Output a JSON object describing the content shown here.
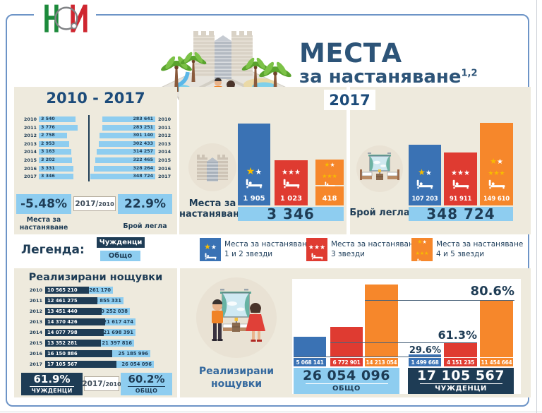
{
  "header": {
    "logo": "НСИ",
    "title_line1": "МЕСТА",
    "title_line2": "за настаняване",
    "title_sup": "1,2"
  },
  "colors": {
    "navy": "#1e3c55",
    "header_blue": "#1c4b7a",
    "light_blue": "#8ecdf0",
    "blue": "#3a72b4",
    "red": "#df3b31",
    "orange": "#f6872b",
    "beige": "#eeeadd",
    "gold": "#f7bc00"
  },
  "icons": {
    "nsi-logo": "NSI emblem",
    "hotel-illustration": "hotel with palm trees and tourist family",
    "building-icon": "hotel building",
    "bedroom-icon": "room with two beds",
    "guests-icon": "man and woman in hotel room",
    "bed-icon": "bed pictogram",
    "star-icon": "★"
  },
  "period_panel": {
    "header": "2010 - 2017",
    "rows": [
      {
        "year": "2010",
        "places": "3 540",
        "places_v": 3540,
        "beds": "283 641",
        "beds_v": 283641
      },
      {
        "year": "2011",
        "places": "3 776",
        "places_v": 3776,
        "beds": "283 251",
        "beds_v": 283251
      },
      {
        "year": "2012",
        "places": "2 758",
        "places_v": 2758,
        "beds": "301 140",
        "beds_v": 301140
      },
      {
        "year": "2013",
        "places": "2 953",
        "places_v": 2953,
        "beds": "302 433",
        "beds_v": 302433
      },
      {
        "year": "2014",
        "places": "3 163",
        "places_v": 3163,
        "beds": "314 257",
        "beds_v": 314257
      },
      {
        "year": "2015",
        "places": "3 202",
        "places_v": 3202,
        "beds": "322 465",
        "beds_v": 322465
      },
      {
        "year": "2016",
        "places": "3 331",
        "places_v": 3331,
        "beds": "328 264",
        "beds_v": 328264
      },
      {
        "year": "2017",
        "places": "3 346",
        "places_v": 3346,
        "beds": "348 724",
        "beds_v": 348724
      }
    ],
    "summary": {
      "places_change": "-5.48%",
      "ratio_num": "2017/",
      "ratio_den": "2010",
      "beds_change": "22.9%",
      "places_label_l1": "Места за",
      "places_label_l2": "настаняване",
      "beds_label": "Брой легла"
    }
  },
  "year2017": {
    "header": "2017",
    "places": {
      "label_l1": "Места за",
      "label_l2": "настаняване",
      "values": [
        "1 905",
        "1 023",
        "418"
      ],
      "total": "3 346"
    },
    "beds": {
      "label": "Брой легла",
      "values": [
        "107 203",
        "91 911",
        "149 610"
      ],
      "total": "348 724"
    }
  },
  "legend": {
    "label": "Легенда:",
    "badge_foreign": "Чужденци",
    "badge_total": "Общо",
    "items": [
      {
        "line1": "Места за настаняване",
        "line2": "1 и 2 звезди"
      },
      {
        "line1": "Места за настаняване",
        "line2": "3 звезди"
      },
      {
        "line1": "Места за настаняване",
        "line2": "4 и 5 звезди"
      }
    ]
  },
  "nights_panel": {
    "title": "Реализирани нощувки",
    "rows": [
      {
        "year": "2010",
        "foreign": "10 565 210",
        "foreign_v": 10565210,
        "total": "16 261 170",
        "total_v": 16261170
      },
      {
        "year": "2011",
        "foreign": "12 461 275",
        "foreign_v": 12461275,
        "total": "18 855 331",
        "total_v": 18855331
      },
      {
        "year": "2012",
        "foreign": "13 451 440",
        "foreign_v": 13451440,
        "total": "20 252 038",
        "total_v": 20252038
      },
      {
        "year": "2013",
        "foreign": "14 370 426",
        "foreign_v": 14370426,
        "total": "21 617 474",
        "total_v": 21617474
      },
      {
        "year": "2014",
        "foreign": "14 077 798",
        "foreign_v": 14077798,
        "total": "21 698 391",
        "total_v": 21698391
      },
      {
        "year": "2015",
        "foreign": "13 352 281",
        "foreign_v": 13352281,
        "total": "21 397 816",
        "total_v": 21397816
      },
      {
        "year": "2016",
        "foreign": "16 150 886",
        "foreign_v": 16150886,
        "total": "25 185 996",
        "total_v": 25185996
      },
      {
        "year": "2017",
        "foreign": "17 105 567",
        "foreign_v": 17105567,
        "total": "26 054 096",
        "total_v": 26054096
      }
    ],
    "summary": {
      "foreign_change": "61.9%",
      "foreign_label": "ЧУЖДЕНЦИ",
      "ratio_num": "2017/",
      "ratio_den": "2010",
      "total_change": "60.2%",
      "total_label": "ОБЩО"
    },
    "icon_label_l1": "Реализирани",
    "icon_label_l2": "нощувки"
  },
  "nights2017": {
    "total_group": {
      "values": [
        "5 068 141",
        "6 772 901",
        "14 213 054"
      ],
      "total": "26 054 096",
      "label": "ОБЩО"
    },
    "foreign_group": {
      "values": [
        "1 499 668",
        "4 151 235",
        "11 454 664"
      ],
      "total": "17 105 567",
      "label": "ЧУЖДЕНЦИ"
    },
    "percents": [
      "29.6%",
      "61.3%",
      "80.6%"
    ]
  },
  "chart_data": [
    {
      "type": "bar",
      "title": "Места за настаняване 2010-2017",
      "orientation": "horizontal",
      "categories": [
        "2010",
        "2011",
        "2012",
        "2013",
        "2014",
        "2015",
        "2016",
        "2017"
      ],
      "values": [
        3540,
        3776,
        2758,
        2953,
        3163,
        3202,
        3331,
        3346
      ],
      "change_2017_2010": "-5.48%"
    },
    {
      "type": "bar",
      "title": "Брой легла 2010-2017",
      "orientation": "horizontal",
      "categories": [
        "2010",
        "2011",
        "2012",
        "2013",
        "2014",
        "2015",
        "2016",
        "2017"
      ],
      "values": [
        283641,
        283251,
        301140,
        302433,
        314257,
        322465,
        328264,
        348724
      ],
      "change_2017_2010": "22.9%"
    },
    {
      "type": "bar",
      "title": "Места за настаняване 2017 по категория",
      "categories": [
        "1 и 2 звезди",
        "3 звезди",
        "4 и 5 звезди"
      ],
      "values": [
        1905,
        1023,
        418
      ],
      "total": 3346
    },
    {
      "type": "bar",
      "title": "Брой легла 2017 по категория",
      "categories": [
        "1 и 2 звезди",
        "3 звезди",
        "4 и 5 звезди"
      ],
      "values": [
        107203,
        91911,
        149610
      ],
      "total": 348724
    },
    {
      "type": "bar",
      "title": "Реализирани нощувки 2010-2017",
      "orientation": "horizontal",
      "categories": [
        "2010",
        "2011",
        "2012",
        "2013",
        "2014",
        "2015",
        "2016",
        "2017"
      ],
      "series": [
        {
          "name": "Общо",
          "values": [
            16261170,
            18855331,
            20252038,
            21617474,
            21698391,
            21397816,
            25185996,
            26054096
          ]
        },
        {
          "name": "Чужденци",
          "values": [
            10565210,
            12461275,
            13451440,
            14370426,
            14077798,
            13352281,
            16150886,
            17105567
          ]
        }
      ],
      "change_2017_2010": {
        "Общо": "60.2%",
        "Чужденци": "61.9%"
      }
    },
    {
      "type": "bar",
      "title": "Реализирани нощувки 2017 по категория",
      "categories": [
        "1 и 2 звезди",
        "3 звезди",
        "4 и 5 звезди"
      ],
      "series": [
        {
          "name": "Общо",
          "values": [
            5068141,
            6772901,
            14213054
          ],
          "total": 26054096
        },
        {
          "name": "Чужденци",
          "values": [
            1499668,
            4151235,
            11454664
          ],
          "total": 17105567
        }
      ],
      "foreign_share_pct": [
        29.6,
        61.3,
        80.6
      ]
    }
  ]
}
